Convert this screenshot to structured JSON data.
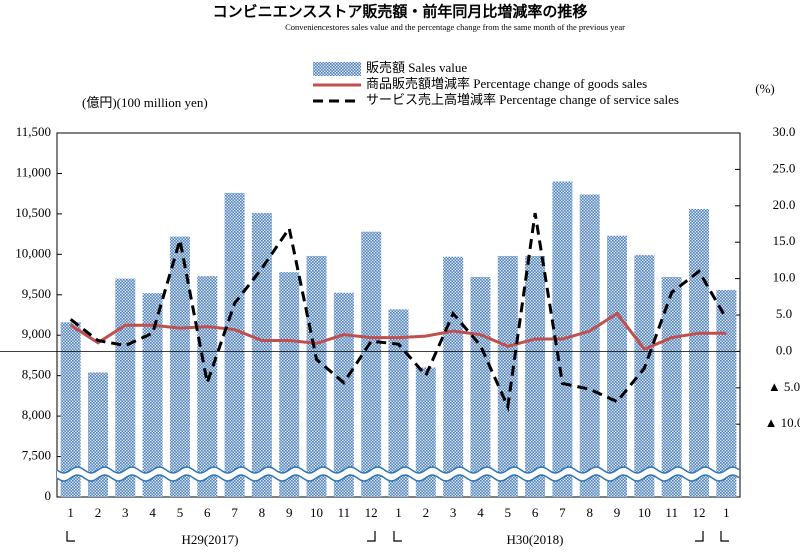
{
  "chart_data": {
    "type": "bar_line",
    "title": "コンビニエンスストア販売額・前年同月比増減率の推移",
    "subtitle": "Conveniencestores sales value and the percentage change from the same month of the previous year",
    "y_label": "(億円)(100 million yen)",
    "y2_label": "(%)",
    "categories": [
      "1",
      "2",
      "3",
      "4",
      "5",
      "6",
      "7",
      "8",
      "9",
      "10",
      "11",
      "12",
      "1",
      "2",
      "3",
      "4",
      "5",
      "6",
      "7",
      "8",
      "9",
      "10",
      "11",
      "12",
      "1"
    ],
    "groups": [
      "H29(2017)",
      "H30(2018)"
    ],
    "series": [
      {
        "name": "販売額 Sales value",
        "type": "bar",
        "color": "#4f81bd",
        "values": [
          9160,
          8540,
          9700,
          9520,
          10220,
          9730,
          10760,
          10510,
          9780,
          9980,
          9525,
          10280,
          9320,
          8600,
          9970,
          9720,
          9980,
          9980,
          10900,
          10740,
          10230,
          9990,
          9720,
          10560,
          9560
        ]
      },
      {
        "name": "商品販売額増減率 Percentage change of goods sales",
        "type": "line",
        "color": "#c0504d",
        "axis": "y2",
        "values": [
          3.6,
          1.2,
          3.6,
          3.6,
          3.2,
          3.4,
          3.0,
          1.5,
          1.5,
          1.1,
          2.3,
          1.9,
          1.9,
          2.1,
          2.8,
          2.3,
          0.7,
          1.7,
          1.7,
          2.8,
          5.2,
          0.3,
          1.9,
          2.5,
          2.5
        ]
      },
      {
        "name": "サービス売上高増減率 Percentage change of service sales",
        "type": "line",
        "dash": true,
        "color": "#000000",
        "axis": "y2",
        "values": [
          4.4,
          1.5,
          0.8,
          2.5,
          15.3,
          -4.3,
          6.6,
          11.4,
          16.9,
          -1.1,
          -4.3,
          1.4,
          1.0,
          -3.3,
          5.2,
          0.8,
          -7.6,
          19.0,
          -4.4,
          -5.2,
          -6.9,
          -2.3,
          8.1,
          11.0,
          4.5
        ]
      }
    ],
    "ylim": [
      7000,
      11500
    ],
    "y_break": true,
    "yticks": [
      0,
      {
        "value": 7500,
        "label": "7,500"
      },
      {
        "value": 8000,
        "label": "8,000"
      },
      {
        "value": 8500,
        "label": "8,500"
      },
      {
        "value": 9000,
        "label": "9,000"
      },
      {
        "value": 9500,
        "label": "9,500"
      },
      {
        "value": 10000,
        "label": "10,000"
      },
      {
        "value": 10500,
        "label": "10,500"
      },
      {
        "value": 11000,
        "label": "11,000"
      },
      {
        "value": 11500,
        "label": "11,500"
      }
    ],
    "y2lim": [
      -20,
      30
    ],
    "y2ticks": [
      {
        "value": 30,
        "label": "30.0"
      },
      {
        "value": 25,
        "label": "25.0"
      },
      {
        "value": 20,
        "label": "20.0"
      },
      {
        "value": 15,
        "label": "15.0"
      },
      {
        "value": 10,
        "label": "10.0"
      },
      {
        "value": 5,
        "label": "5.0"
      },
      {
        "value": 0,
        "label": "0.0"
      },
      {
        "value": -5,
        "label": "▲ 5.0"
      },
      {
        "value": -10,
        "label": "▲ 10.0"
      }
    ],
    "zero_line": true
  }
}
